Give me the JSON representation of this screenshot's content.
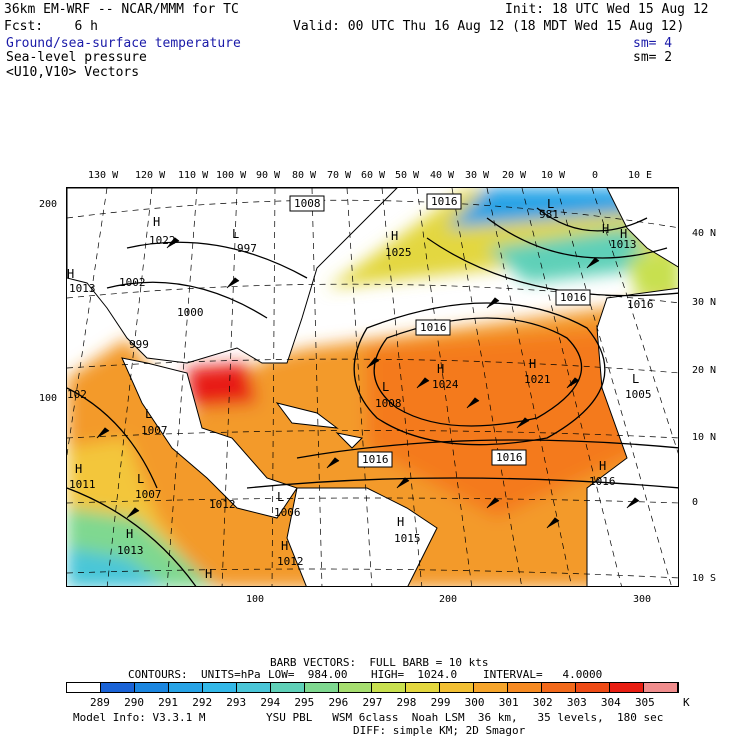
{
  "header": {
    "model": "36km EM-WRF -- NCAR/MMM for TC",
    "init": "Init: 18 UTC Wed 15 Aug 12",
    "fcst": "Fcst:    6 h",
    "valid": "Valid: 00 UTC Thu 16 Aug 12 (18 MDT Wed 15 Aug 12)",
    "field1": "Ground/sea-surface temperature",
    "field1_sm": "sm= 4",
    "field2": "Sea-level pressure",
    "field2_sm": "sm= 2",
    "field3": "<U10,V10> Vectors"
  },
  "lon_labels": [
    "130 W",
    "120 W",
    "110 W",
    "100 W",
    "90 W",
    "80 W",
    "70 W",
    "60 W",
    "50 W",
    "40 W",
    "30 W",
    "20 W",
    "10 W",
    "0",
    "10 E"
  ],
  "lat_labels": [
    "40 N",
    "30 N",
    "20 N",
    "10 N",
    "0",
    "10 S"
  ],
  "left_ticks": [
    "200",
    "100"
  ],
  "bottom_ticks": [
    "100",
    "200",
    "300"
  ],
  "pressure_labels": [
    {
      "text": "1008",
      "boxed": true
    },
    {
      "text": "1016",
      "boxed": true
    },
    {
      "text": "1016",
      "boxed": true
    },
    {
      "text": "1016",
      "boxed": true
    },
    {
      "text": "1016",
      "boxed": true
    },
    {
      "text": "1016",
      "boxed": true
    },
    {
      "text": "1002",
      "boxed": false
    },
    {
      "text": "1000",
      "boxed": false
    },
    {
      "text": "999",
      "boxed": false
    },
    {
      "text": "997",
      "boxed": false
    },
    {
      "text": "1025",
      "boxed": false
    },
    {
      "text": "1024",
      "boxed": false
    },
    {
      "text": "1021",
      "boxed": false
    },
    {
      "text": "1008",
      "boxed": false
    },
    {
      "text": "1005",
      "boxed": false
    },
    {
      "text": "1016",
      "boxed": false
    },
    {
      "text": "1007",
      "boxed": false
    },
    {
      "text": "1007",
      "boxed": false
    },
    {
      "text": "1012",
      "boxed": false
    },
    {
      "text": "1006",
      "boxed": false
    },
    {
      "text": "1015",
      "boxed": false
    },
    {
      "text": "1013",
      "boxed": false
    },
    {
      "text": "1012",
      "boxed": false
    },
    {
      "text": "1011",
      "boxed": false
    },
    {
      "text": "1013",
      "boxed": false
    },
    {
      "text": "1022",
      "boxed": false
    },
    {
      "text": "1013",
      "boxed": false
    },
    {
      "text": "1016",
      "boxed": false
    },
    {
      "text": "981",
      "boxed": false
    },
    {
      "text": "102",
      "boxed": false
    }
  ],
  "hl_markers": [
    "H",
    "H",
    "H",
    "H",
    "H",
    "H",
    "L",
    "L",
    "H",
    "H",
    "L",
    "L",
    "L",
    "H",
    "H",
    "H",
    "L",
    "H",
    "H",
    "L"
  ],
  "legend": {
    "barb_line": "BARB VECTORS:  FULL BARB = 10 kts",
    "contours_label": "CONTOURS:",
    "units": "UNITS=hPa",
    "low": "LOW=  984.00",
    "high": "HIGH=  1024.0",
    "interval": "INTERVAL=   4.0000",
    "colorbar_values": [
      "289",
      "290",
      "291",
      "292",
      "293",
      "294",
      "295",
      "296",
      "297",
      "298",
      "299",
      "300",
      "301",
      "302",
      "303",
      "304",
      "305"
    ],
    "colorbar_unit": "K",
    "colorbar_colors": [
      "#ffffff",
      "#1a63d6",
      "#1b86e0",
      "#27a3e6",
      "#33b8e8",
      "#4ac6d8",
      "#5fd0b8",
      "#7fd890",
      "#a6de70",
      "#c8e04f",
      "#e3d73f",
      "#f2c034",
      "#f6a52b",
      "#f68a22",
      "#f2691b",
      "#ee4b16",
      "#e81e12",
      "#f08d8d"
    ]
  },
  "footer": {
    "model_info": "Model Info: V3.3.1 M",
    "physics": "YSU PBL   WSM 6class  Noah LSM  36 km,   35 levels,  180 sec",
    "diff": "DIFF: simple KM; 2D Smagor"
  }
}
